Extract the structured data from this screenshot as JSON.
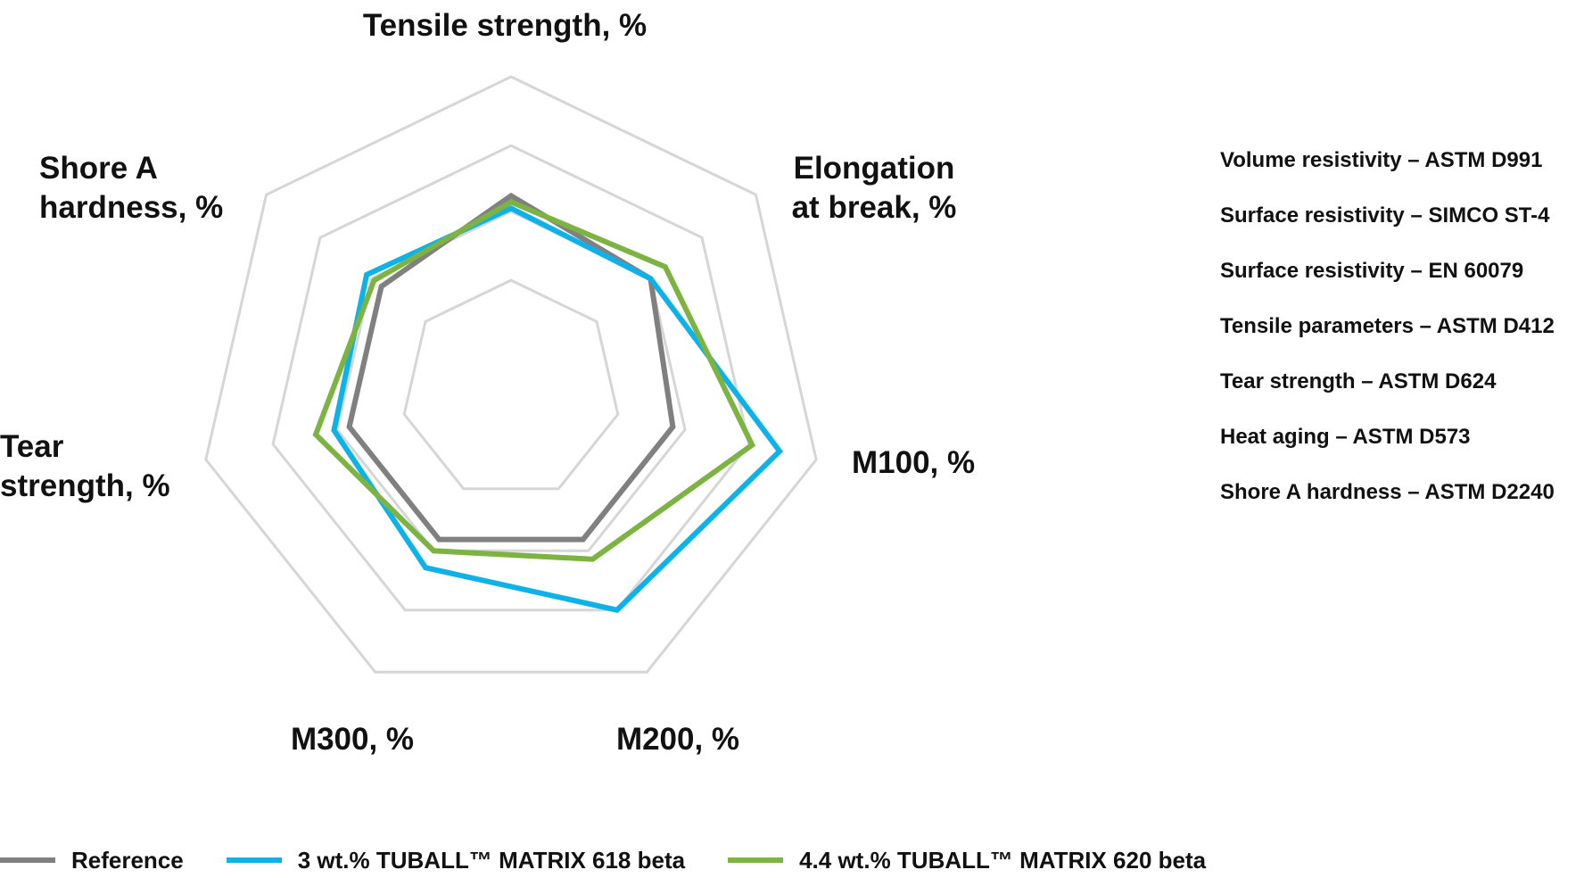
{
  "chart_data": {
    "type": "radar",
    "axes": [
      [
        "Tensile strength, %"
      ],
      [
        "Elongation",
        "at break, %"
      ],
      [
        "M100, %"
      ],
      [
        "M200, %"
      ],
      [
        "M300, %"
      ],
      [
        "Tear",
        "strength, %"
      ],
      [
        "Shore A",
        "hardness, %"
      ]
    ],
    "grid_levels": 4,
    "grid_color": "#d6d6d6",
    "series": [
      {
        "name": "Reference",
        "color": "#808080",
        "values": [
          0.62,
          0.57,
          0.53,
          0.53,
          0.53,
          0.53,
          0.53
        ]
      },
      {
        "name": "3 wt.% TUBALL™ MATRIX 618 beta",
        "color": "#0db3e8",
        "values": [
          0.58,
          0.57,
          0.88,
          0.78,
          0.63,
          0.58,
          0.59
        ]
      },
      {
        "name": "4.4 wt.% TUBALL™ MATRIX 620 beta",
        "color": "#7cb342",
        "values": [
          0.6,
          0.63,
          0.79,
          0.6,
          0.57,
          0.64,
          0.56
        ]
      }
    ]
  },
  "methods": [
    "Volume resistivity – ASTM D991",
    "Surface resistivity – SIMCO ST-4",
    "Surface resistivity – EN 60079",
    "Tensile parameters – ASTM D412",
    "Tear strength – ASTM D624",
    "Heat aging – ASTM D573",
    "Shore A hardness – ASTM D2240"
  ],
  "legend": [
    {
      "label": "Reference",
      "color": "#808080"
    },
    {
      "label": "3 wt.% TUBALL™ MATRIX 618 beta",
      "color": "#0db3e8"
    },
    {
      "label": "4.4 wt.% TUBALL™ MATRIX 620 beta",
      "color": "#7cb342"
    }
  ]
}
